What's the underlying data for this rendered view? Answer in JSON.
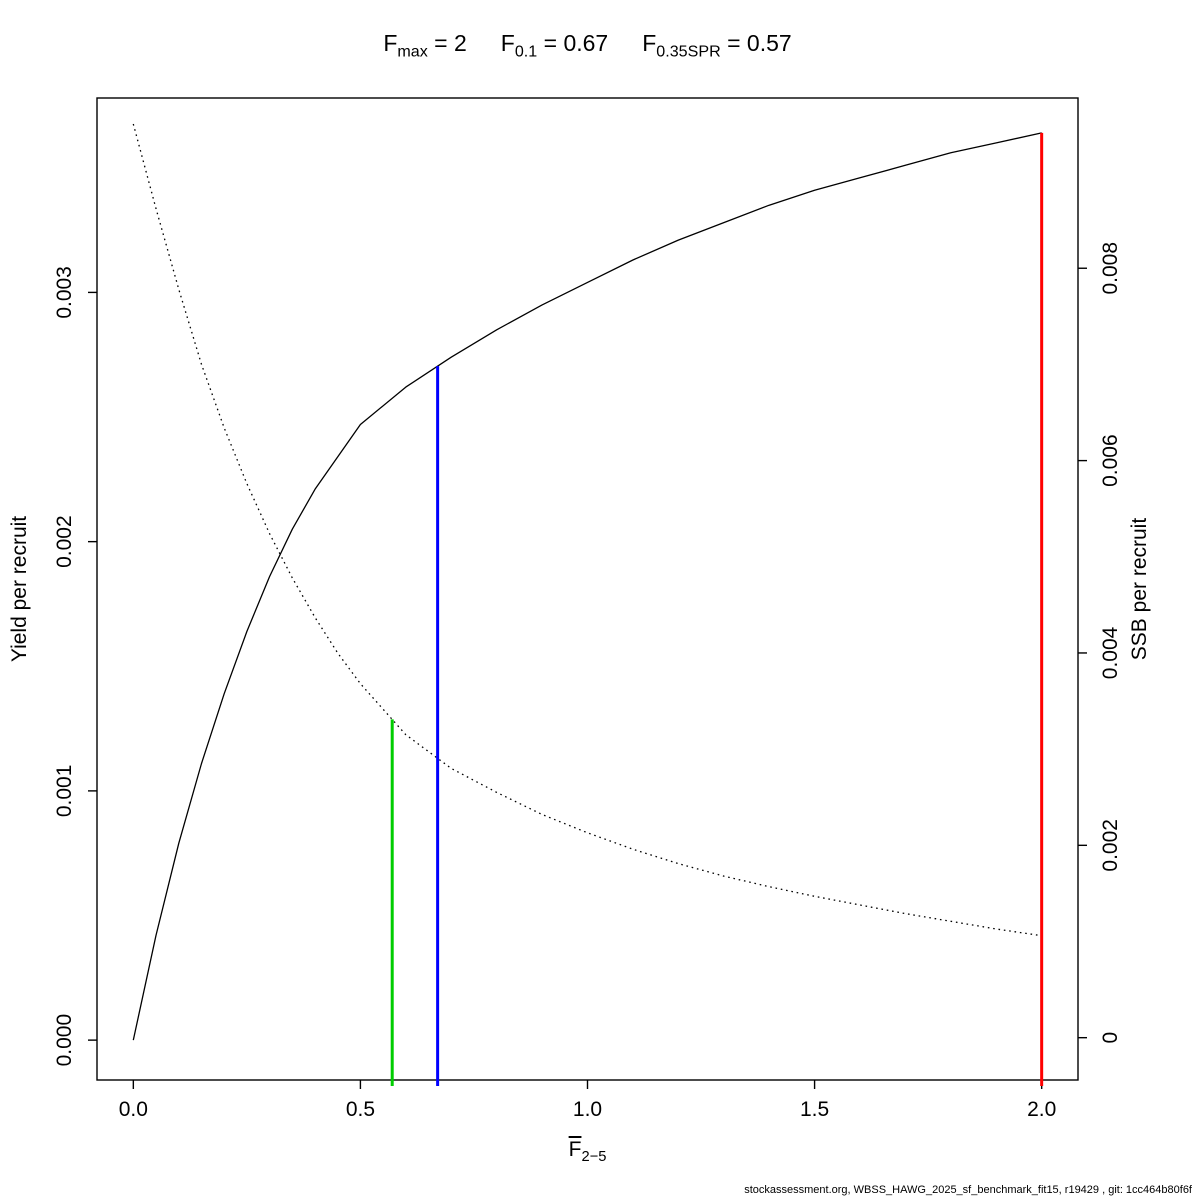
{
  "title": {
    "parts": [
      {
        "base": "F",
        "sub": "max",
        "rest": " = 2"
      },
      {
        "base": "F",
        "sub": "0.1",
        "rest": " = 0.67"
      },
      {
        "base": "F",
        "sub": "0.35SPR",
        "rest": " = 0.57"
      }
    ]
  },
  "x_label": {
    "base": "F",
    "sub": "2−5"
  },
  "footer": {
    "text": "stockassessment.org, WBSS_HAWG_2025_sf_benchmark_fit15, r19429 , git: 1cc464b80f6f"
  },
  "chart_data": {
    "type": "line",
    "title": "Fmax = 2    F0.1 = 0.67    F0.35SPR = 0.57",
    "x_axis": {
      "label": "F̄2−5",
      "tick_labels": [
        "0.0",
        "0.5",
        "1.0",
        "1.5",
        "2.0"
      ],
      "tick_values": [
        0,
        0.5,
        1,
        1.5,
        2
      ],
      "range": [
        -0.08,
        2.08
      ]
    },
    "y_left": {
      "label": "Yield per recruit",
      "tick_labels": [
        "0.000",
        "0.001",
        "0.002",
        "0.003"
      ],
      "tick_values": [
        0,
        0.001,
        0.002,
        0.003
      ],
      "range": [
        -0.00016,
        0.00378
      ]
    },
    "y_right": {
      "label": "SSB per recruit",
      "tick_labels": [
        "0",
        "0.002",
        "0.004",
        "0.006",
        "0.008"
      ],
      "tick_values": [
        0,
        0.002,
        0.004,
        0.006,
        0.008
      ],
      "range": [
        -0.00044,
        0.00977
      ]
    },
    "series": [
      {
        "name": "yield-per-recruit",
        "axis": "left",
        "style": "solid",
        "color": "#000000",
        "x": [
          0,
          0.05,
          0.1,
          0.15,
          0.2,
          0.25,
          0.3,
          0.35,
          0.4,
          0.5,
          0.6,
          0.7,
          0.8,
          0.9,
          1.0,
          1.1,
          1.2,
          1.3,
          1.4,
          1.5,
          1.6,
          1.7,
          1.8,
          1.9,
          2.0
        ],
        "y": [
          0,
          0.00042,
          0.00079,
          0.00111,
          0.00139,
          0.00164,
          0.00186,
          0.00205,
          0.00221,
          0.00247,
          0.00262,
          0.00274,
          0.00285,
          0.00295,
          0.00304,
          0.00313,
          0.00321,
          0.00328,
          0.00335,
          0.00341,
          0.00346,
          0.00351,
          0.00356,
          0.0036,
          0.00364
        ]
      },
      {
        "name": "ssb-per-recruit",
        "axis": "right",
        "style": "dotted",
        "color": "#000000",
        "x": [
          0,
          0.05,
          0.1,
          0.15,
          0.2,
          0.25,
          0.3,
          0.35,
          0.4,
          0.45,
          0.5,
          0.6,
          0.7,
          0.8,
          0.9,
          1.0,
          1.1,
          1.2,
          1.3,
          1.4,
          1.5,
          1.6,
          1.7,
          1.8,
          1.9,
          2.0
        ],
        "y": [
          0.0095,
          0.00862,
          0.00778,
          0.007,
          0.00634,
          0.00576,
          0.00524,
          0.00478,
          0.00437,
          0.004,
          0.00368,
          0.00315,
          0.0028,
          0.00255,
          0.00232,
          0.00213,
          0.00196,
          0.00181,
          0.00168,
          0.00157,
          0.00147,
          0.00138,
          0.00129,
          0.00121,
          0.00113,
          0.00106
        ]
      }
    ],
    "reference_lines": [
      {
        "id": "fmax",
        "label": "Fmax = 2",
        "x": 2,
        "color": "#FF0000",
        "curve": "yield-per-recruit"
      },
      {
        "id": "f01",
        "label": "F0.1 = 0.67",
        "x": 0.67,
        "color": "#0000FF",
        "curve": "yield-per-recruit"
      },
      {
        "id": "f035spr",
        "label": "F0.35SPR = 0.57",
        "x": 0.57,
        "color": "#00CD00",
        "curve": "ssb-per-recruit"
      }
    ]
  }
}
